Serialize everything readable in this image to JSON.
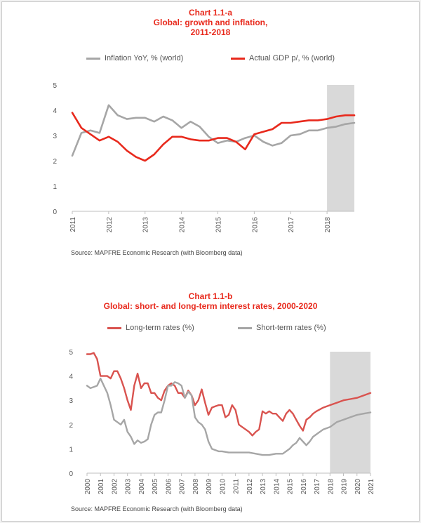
{
  "colors": {
    "red": "#e8291c",
    "gray": "#a6a6a6",
    "shade": "#d9d9d9"
  },
  "chart_data": [
    {
      "type": "line",
      "title_lines": [
        "Chart 1.1-a",
        "Global:  growth  and inflation,",
        "2011-2018"
      ],
      "ylim": [
        0,
        5
      ],
      "yticks": [
        "0",
        "1",
        "2",
        "3",
        "4",
        "5"
      ],
      "xlim": [
        2011,
        2018.75
      ],
      "xticks": [
        "2011",
        "2012",
        "2013",
        "2014",
        "2015",
        "2016",
        "2017",
        "2018"
      ],
      "shaded_x": [
        2018.0,
        2018.75
      ],
      "source": "Source: MAPFRE Economic Research (with Bloomberg data)",
      "series": [
        {
          "name": "Inflation YoY,  % (world)",
          "color": "#a6a6a6",
          "x": [
            2011.0,
            2011.25,
            2011.5,
            2011.75,
            2012.0,
            2012.25,
            2012.5,
            2012.75,
            2013.0,
            2013.25,
            2013.5,
            2013.75,
            2014.0,
            2014.25,
            2014.5,
            2014.75,
            2015.0,
            2015.25,
            2015.5,
            2015.75,
            2016.0,
            2016.25,
            2016.5,
            2016.75,
            2017.0,
            2017.25,
            2017.5,
            2017.75,
            2018.0,
            2018.25,
            2018.5,
            2018.75
          ],
          "values": [
            2.2,
            3.1,
            3.2,
            3.1,
            4.2,
            3.8,
            3.65,
            3.7,
            3.7,
            3.55,
            3.75,
            3.6,
            3.3,
            3.55,
            3.35,
            2.95,
            2.7,
            2.8,
            2.75,
            2.9,
            3.0,
            2.75,
            2.6,
            2.7,
            3.0,
            3.05,
            3.2,
            3.2,
            3.3,
            3.35,
            3.45,
            3.5
          ]
        },
        {
          "name": "Actual GDP p/, % (world)",
          "color": "#e8291c",
          "x": [
            2011.0,
            2011.25,
            2011.5,
            2011.75,
            2012.0,
            2012.25,
            2012.5,
            2012.75,
            2013.0,
            2013.25,
            2013.5,
            2013.75,
            2014.0,
            2014.25,
            2014.5,
            2014.75,
            2015.0,
            2015.25,
            2015.5,
            2015.75,
            2016.0,
            2016.25,
            2016.5,
            2016.75,
            2017.0,
            2017.25,
            2017.5,
            2017.75,
            2018.0,
            2018.25,
            2018.5,
            2018.75
          ],
          "values": [
            3.9,
            3.3,
            3.05,
            2.8,
            2.95,
            2.75,
            2.4,
            2.15,
            2.0,
            2.25,
            2.65,
            2.95,
            2.95,
            2.85,
            2.8,
            2.8,
            2.9,
            2.9,
            2.75,
            2.45,
            3.05,
            3.15,
            3.25,
            3.5,
            3.5,
            3.55,
            3.6,
            3.6,
            3.65,
            3.75,
            3.8,
            3.8
          ]
        }
      ]
    },
    {
      "type": "line",
      "title_lines": [
        "Chart 1.1-b",
        "Global: short- and long-term interest rates, 2000-2020"
      ],
      "ylim": [
        0,
        5
      ],
      "yticks": [
        "0",
        "1",
        "2",
        "3",
        "4",
        "5"
      ],
      "xlim": [
        2000,
        2021
      ],
      "xticks": [
        "2000",
        "2001",
        "2002",
        "2003",
        "2004",
        "2005",
        "2006",
        "2007",
        "2008",
        "2009",
        "2010",
        "2011",
        "2012",
        "2013",
        "2014",
        "2015",
        "2016",
        "2017",
        "2018",
        "2019",
        "2020",
        "2021"
      ],
      "shaded_x": [
        2018.0,
        2021.0
      ],
      "source": "Source: MAPFRE Economic Research (with Bloomberg data)",
      "series": [
        {
          "name": "Long-term rates (%)",
          "color": "#d9534f",
          "x": [
            2000.0,
            2000.25,
            2000.5,
            2000.75,
            2001.0,
            2001.25,
            2001.5,
            2001.75,
            2002.0,
            2002.25,
            2002.5,
            2002.75,
            2003.0,
            2003.25,
            2003.5,
            2003.75,
            2004.0,
            2004.25,
            2004.5,
            2004.75,
            2005.0,
            2005.25,
            2005.5,
            2005.75,
            2006.0,
            2006.25,
            2006.5,
            2006.75,
            2007.0,
            2007.25,
            2007.5,
            2007.75,
            2008.0,
            2008.25,
            2008.5,
            2008.75,
            2009.0,
            2009.25,
            2009.5,
            2009.75,
            2010.0,
            2010.25,
            2010.5,
            2010.75,
            2011.0,
            2011.25,
            2011.5,
            2011.75,
            2012.0,
            2012.25,
            2012.5,
            2012.75,
            2013.0,
            2013.25,
            2013.5,
            2013.75,
            2014.0,
            2014.25,
            2014.5,
            2014.75,
            2015.0,
            2015.25,
            2015.5,
            2015.75,
            2016.0,
            2016.25,
            2016.5,
            2016.75,
            2017.0,
            2017.5,
            2018.0,
            2018.5,
            2019.0,
            2019.5,
            2020.0,
            2020.5,
            2021.0
          ],
          "values": [
            4.9,
            4.9,
            4.95,
            4.7,
            4.0,
            4.0,
            4.0,
            3.9,
            4.2,
            4.2,
            3.9,
            3.5,
            3.0,
            2.6,
            3.6,
            4.1,
            3.5,
            3.7,
            3.7,
            3.3,
            3.3,
            3.1,
            3.0,
            3.4,
            3.6,
            3.7,
            3.6,
            3.3,
            3.3,
            3.1,
            3.4,
            3.2,
            2.8,
            3.0,
            3.45,
            2.9,
            2.4,
            2.7,
            2.75,
            2.8,
            2.8,
            2.3,
            2.4,
            2.8,
            2.6,
            2.0,
            1.9,
            1.8,
            1.7,
            1.55,
            1.7,
            1.8,
            2.55,
            2.45,
            2.55,
            2.45,
            2.45,
            2.3,
            2.15,
            2.45,
            2.6,
            2.45,
            2.2,
            1.95,
            1.75,
            2.2,
            2.3,
            2.45,
            2.55,
            2.7,
            2.8,
            2.9,
            3.0,
            3.05,
            3.1,
            3.2,
            3.3
          ]
        },
        {
          "name": "Short-term rates (%)",
          "color": "#a6a6a6",
          "x": [
            2000.0,
            2000.25,
            2000.5,
            2000.75,
            2001.0,
            2001.25,
            2001.5,
            2001.75,
            2002.0,
            2002.25,
            2002.5,
            2002.75,
            2003.0,
            2003.25,
            2003.5,
            2003.75,
            2004.0,
            2004.25,
            2004.5,
            2004.75,
            2005.0,
            2005.25,
            2005.5,
            2005.75,
            2006.0,
            2006.25,
            2006.5,
            2006.75,
            2007.0,
            2007.25,
            2007.5,
            2007.75,
            2008.0,
            2008.25,
            2008.5,
            2008.75,
            2009.0,
            2009.25,
            2009.5,
            2009.75,
            2010.0,
            2010.5,
            2011.0,
            2011.5,
            2012.0,
            2012.5,
            2013.0,
            2013.5,
            2014.0,
            2014.5,
            2015.0,
            2015.25,
            2015.5,
            2015.75,
            2016.0,
            2016.25,
            2016.5,
            2016.75,
            2017.0,
            2017.5,
            2018.0,
            2018.5,
            2019.0,
            2019.5,
            2020.0,
            2020.5,
            2021.0
          ],
          "values": [
            3.6,
            3.5,
            3.55,
            3.6,
            3.9,
            3.6,
            3.3,
            2.8,
            2.2,
            2.1,
            2.0,
            2.2,
            1.7,
            1.5,
            1.2,
            1.35,
            1.25,
            1.3,
            1.4,
            2.0,
            2.4,
            2.5,
            2.5,
            3.0,
            3.6,
            3.6,
            3.75,
            3.7,
            3.6,
            3.1,
            3.35,
            3.2,
            2.3,
            2.1,
            2.0,
            1.8,
            1.3,
            1.0,
            0.95,
            0.9,
            0.9,
            0.85,
            0.85,
            0.85,
            0.85,
            0.8,
            0.75,
            0.75,
            0.8,
            0.8,
            1.0,
            1.15,
            1.25,
            1.45,
            1.3,
            1.15,
            1.3,
            1.5,
            1.6,
            1.8,
            1.9,
            2.1,
            2.2,
            2.3,
            2.4,
            2.45,
            2.5
          ]
        }
      ]
    }
  ]
}
